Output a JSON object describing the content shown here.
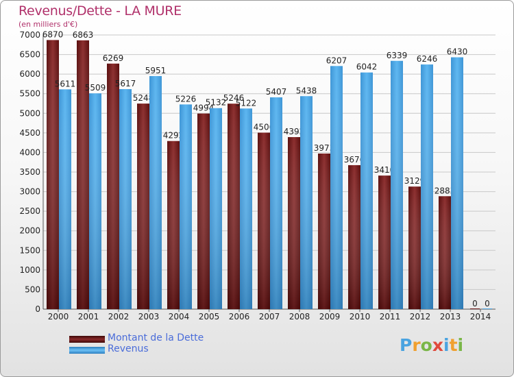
{
  "chart_data": {
    "type": "bar",
    "title": "Revenus/Dette - LA MURE",
    "subtitle": "(en milliers d'€)",
    "categories": [
      "2000",
      "2001",
      "2002",
      "2003",
      "2004",
      "2005",
      "2006",
      "2007",
      "2008",
      "2009",
      "2010",
      "2011",
      "2012",
      "2013",
      "2014"
    ],
    "series": [
      {
        "name": "Montant de la Dette",
        "color": "#6e1a1a",
        "values": [
          6870,
          6863,
          6269,
          5248,
          4292,
          4994,
          5246,
          4506,
          4392,
          3973,
          3676,
          3410,
          3129,
          2883,
          0
        ]
      },
      {
        "name": "Revenus",
        "color": "#4ca6e6",
        "values": [
          5611,
          5509,
          5617,
          5951,
          5226,
          5132,
          5122,
          5407,
          5438,
          6207,
          6042,
          6339,
          6246,
          6430,
          0
        ]
      }
    ],
    "ylim": [
      0,
      7000
    ],
    "yticks": [
      0,
      500,
      1000,
      1500,
      2000,
      2500,
      3000,
      3500,
      4000,
      4500,
      5000,
      5500,
      6000,
      6500,
      7000
    ],
    "grid": true,
    "legend": "bottom-left"
  },
  "logo": {
    "letters": [
      "P",
      "r",
      "o",
      "x",
      "i",
      "t",
      "i"
    ],
    "colors": [
      "#4aa3e0",
      "#f0a030",
      "#7ab648",
      "#e04a3c",
      "#4aa3e0",
      "#f0a030",
      "#7ab648"
    ]
  }
}
